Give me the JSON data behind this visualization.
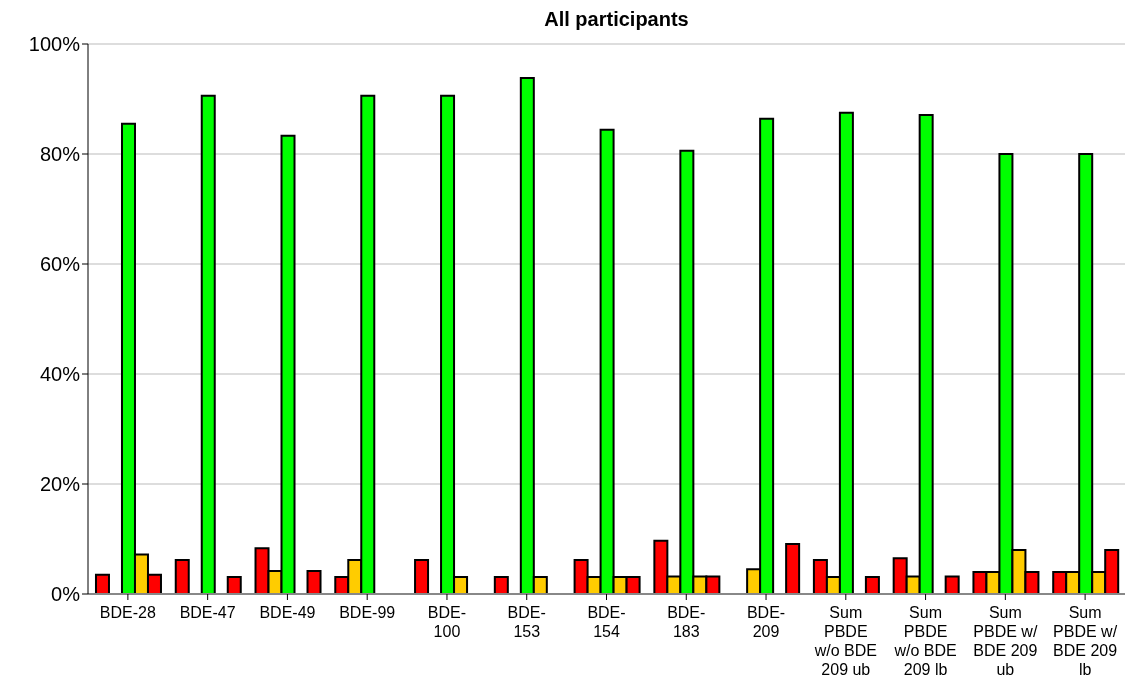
{
  "chart_data": {
    "type": "bar",
    "title": "All participants",
    "categories": [
      "BDE-28",
      "BDE-47",
      "BDE-49",
      "BDE-99",
      "BDE-100",
      "BDE-153",
      "BDE-154",
      "BDE-183",
      "BDE-209",
      "Sum PBDE w/o BDE 209 ub",
      "Sum PBDE w/o BDE 209 lb",
      "Sum PBDE w/ BDE 209 ub",
      "Sum PBDE w/ BDE 209 lb"
    ],
    "series": [
      {
        "color": "#ff0000",
        "values": [
          3.5,
          6.2,
          8.3,
          3.1,
          6.2,
          3.1,
          6.2,
          9.7,
          null,
          6.2,
          6.5,
          4,
          4
        ]
      },
      {
        "color": "#ffcc00",
        "values": [
          null,
          null,
          4.2,
          6.2,
          null,
          null,
          3.1,
          3.2,
          4.5,
          3.1,
          3.2,
          4,
          4
        ]
      },
      {
        "color": "#00ff00",
        "values": [
          85.5,
          90.6,
          83.3,
          90.6,
          90.6,
          93.8,
          84.4,
          80.6,
          86.4,
          87.5,
          87.1,
          80,
          80
        ]
      },
      {
        "color": "#ffcc00",
        "values": [
          7.2,
          null,
          null,
          null,
          3.1,
          3.1,
          3.1,
          3.2,
          null,
          null,
          null,
          8,
          4
        ]
      },
      {
        "color": "#ff0000",
        "values": [
          3.5,
          3.1,
          4.2,
          null,
          null,
          null,
          3.1,
          3.2,
          9.1,
          3.1,
          3.2,
          4,
          8
        ]
      }
    ],
    "ylim": [
      0,
      100
    ],
    "yticks": [
      {
        "value": 0,
        "label": "0%"
      },
      {
        "value": 20,
        "label": "20%"
      },
      {
        "value": 40,
        "label": "40%"
      },
      {
        "value": 60,
        "label": "60%"
      },
      {
        "value": 80,
        "label": "80%"
      },
      {
        "value": 100,
        "label": "100%"
      }
    ],
    "grid": "y",
    "legend": false
  }
}
